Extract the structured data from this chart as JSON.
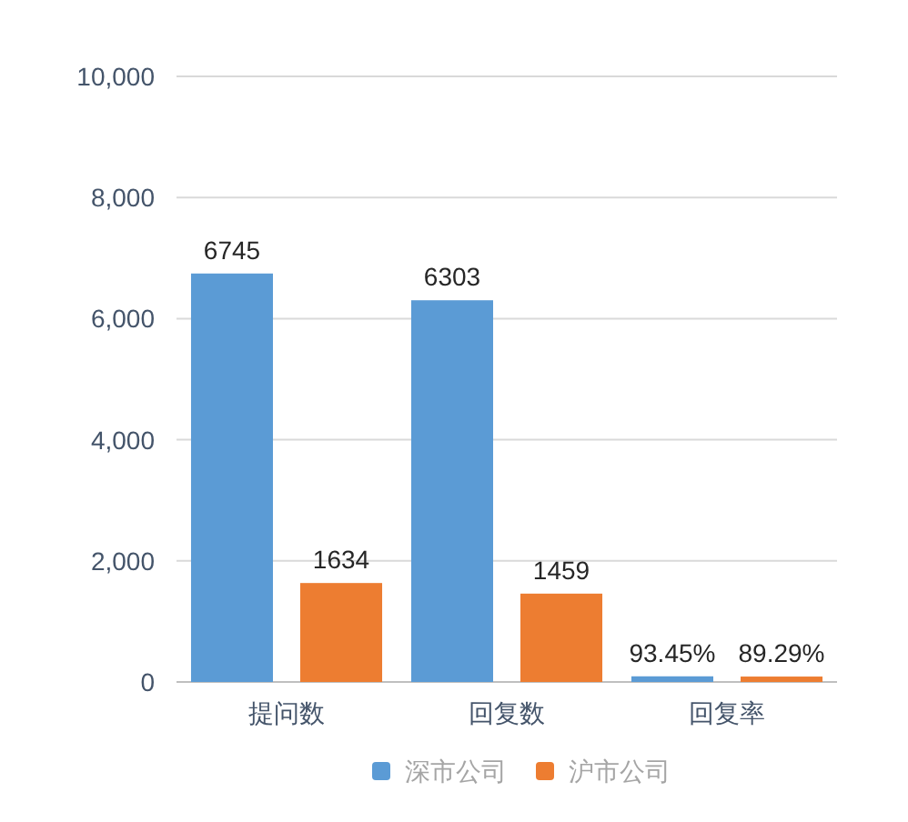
{
  "chart_data": {
    "type": "bar",
    "categories": [
      "提问数",
      "回复数",
      "回复率"
    ],
    "series": [
      {
        "name": "深市公司",
        "color": "#5b9bd5",
        "values": [
          6745,
          6303,
          93.45
        ],
        "value_labels": [
          "6745",
          "6303",
          "93.45%"
        ]
      },
      {
        "name": "沪市公司",
        "color": "#ed7d31",
        "values": [
          1634,
          1459,
          89.29
        ],
        "value_labels": [
          "1634",
          "1459",
          "89.29%"
        ]
      }
    ],
    "ylim": [
      0,
      10000
    ],
    "yticks": [
      {
        "value": 0,
        "label": "0"
      },
      {
        "value": 2000,
        "label": "2,000"
      },
      {
        "value": 4000,
        "label": "4,000"
      },
      {
        "value": 6000,
        "label": "6,000"
      },
      {
        "value": 8000,
        "label": "8,000"
      },
      {
        "value": 10000,
        "label": "10,000"
      }
    ],
    "grid": "y",
    "legend": "bottom"
  }
}
